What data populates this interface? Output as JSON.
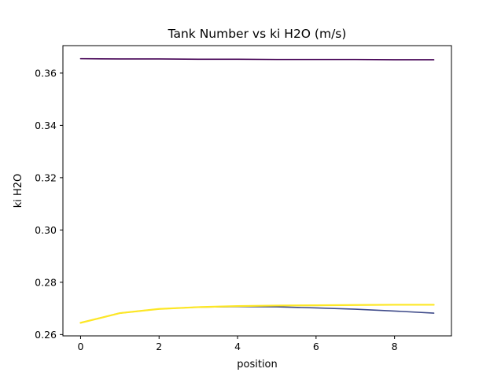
{
  "chart_data": {
    "type": "line",
    "title": "Tank Number vs ki H2O (m/s)",
    "xlabel": "position",
    "ylabel": "ki H2O",
    "xlim": [
      -0.45,
      9.45
    ],
    "ylim": [
      0.2595,
      0.3705
    ],
    "xticks": [
      0,
      2,
      4,
      6,
      8
    ],
    "xtick_labels": [
      "0",
      "2",
      "4",
      "6",
      "8"
    ],
    "yticks": [
      0.26,
      0.28,
      0.3,
      0.32,
      0.34,
      0.36
    ],
    "ytick_labels": [
      "0.26",
      "0.28",
      "0.30",
      "0.32",
      "0.34",
      "0.36"
    ],
    "grid": false,
    "legend": "none",
    "x": [
      0,
      1,
      2,
      3,
      4,
      5,
      6,
      7,
      8,
      9
    ],
    "series": [
      {
        "color": "#440154",
        "values": [
          0.3655,
          0.3654,
          0.3654,
          0.3653,
          0.3653,
          0.3652,
          0.3652,
          0.3652,
          0.3651,
          0.3651
        ]
      },
      {
        "color": "#3e4a89",
        "values": [
          0.2645,
          0.2682,
          0.2698,
          0.2705,
          0.2707,
          0.2706,
          0.2702,
          0.2697,
          0.269,
          0.2682
        ]
      },
      {
        "color": "#fde725",
        "values": [
          0.2645,
          0.2682,
          0.2698,
          0.2705,
          0.2709,
          0.2711,
          0.2712,
          0.2713,
          0.2714,
          0.2714
        ]
      }
    ]
  }
}
